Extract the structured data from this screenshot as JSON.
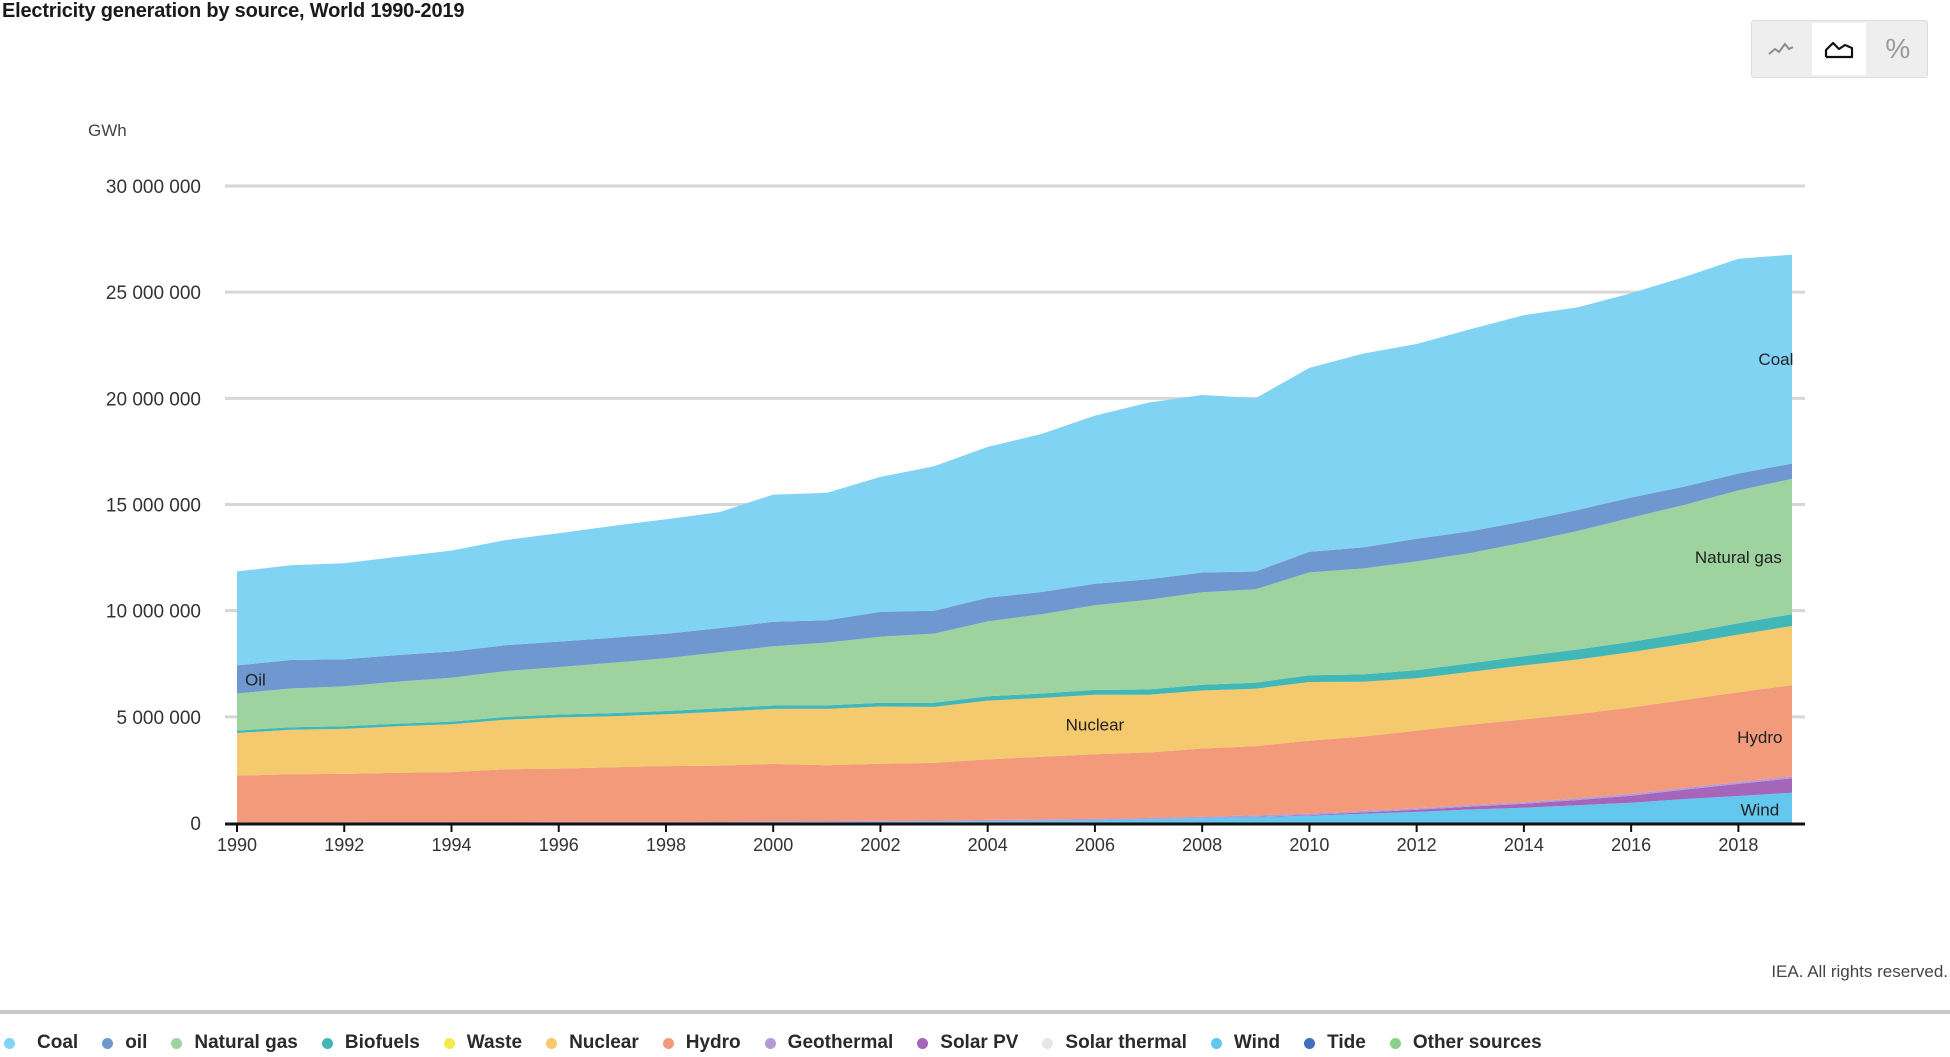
{
  "header": {
    "title": "Electricity generation by source, World 1990-2019"
  },
  "toolbar": {
    "buttons": [
      {
        "icon": "line-chart-icon",
        "active": false
      },
      {
        "icon": "area-chart-icon",
        "active": true
      },
      {
        "icon": "percent-icon",
        "label": "%",
        "active": false
      }
    ]
  },
  "footer": {
    "credit": "IEA. All rights reserved."
  },
  "legend": [
    {
      "label": "Coal",
      "color": "#81d3f3"
    },
    {
      "label": "oil",
      "color": "#6f98d1"
    },
    {
      "label": "Natural gas",
      "color": "#9ed3a0"
    },
    {
      "label": "Biofuels",
      "color": "#42b7b8"
    },
    {
      "label": "Waste",
      "color": "#f6e94f"
    },
    {
      "label": "Nuclear",
      "color": "#f5c96e"
    },
    {
      "label": "Hydro",
      "color": "#f29a7a"
    },
    {
      "label": "Geothermal",
      "color": "#b59ad8"
    },
    {
      "label": "Solar PV",
      "color": "#a565b8"
    },
    {
      "label": "Solar thermal",
      "color": "#e6e6e6"
    },
    {
      "label": "Wind",
      "color": "#64c7ee"
    },
    {
      "label": "Tide",
      "color": "#3f6fba"
    },
    {
      "label": "Other sources",
      "color": "#8ccf8a"
    }
  ],
  "chart_data": {
    "type": "area",
    "stacked": true,
    "title": "Electricity generation by source, World 1990-2019",
    "ylabel": "GWh",
    "xlabel": "",
    "ylim": [
      0,
      30000000
    ],
    "xlim": [
      1990,
      2019
    ],
    "grid": true,
    "y_ticks": [
      0,
      5000000,
      10000000,
      15000000,
      20000000,
      25000000,
      30000000
    ],
    "y_tick_labels": [
      "0",
      "5 000 000",
      "10 000 000",
      "15 000 000",
      "20 000 000",
      "25 000 000",
      "30 000 000"
    ],
    "x_ticks": [
      "1990",
      "1992",
      "1994",
      "1996",
      "1998",
      "2000",
      "2002",
      "2004",
      "2006",
      "2008",
      "2010",
      "2012",
      "2014",
      "2016",
      "2018"
    ],
    "x": [
      1990,
      1991,
      1992,
      1993,
      1994,
      1995,
      1996,
      1997,
      1998,
      1999,
      2000,
      2001,
      2002,
      2003,
      2004,
      2005,
      2006,
      2007,
      2008,
      2009,
      2010,
      2011,
      2012,
      2013,
      2014,
      2015,
      2016,
      2017,
      2018,
      2019
    ],
    "series": [
      {
        "name": "Wind",
        "color": "#64c7ee",
        "label": "Wind",
        "values": [
          4000,
          4500,
          5000,
          6000,
          7500,
          8000,
          9500,
          12000,
          16000,
          21000,
          31000,
          38000,
          52000,
          63000,
          85000,
          104000,
          133000,
          171000,
          221000,
          276000,
          342000,
          437000,
          523000,
          638000,
          714000,
          832000,
          958000,
          1131000,
          1273000,
          1427000
        ]
      },
      {
        "name": "Solar PV",
        "color": "#a565b8",
        "values": [
          0,
          0,
          0,
          0,
          0,
          0,
          0,
          0,
          0,
          1000,
          1000,
          1000,
          1000,
          2000,
          3000,
          4000,
          6000,
          8000,
          12000,
          20000,
          32000,
          61000,
          97000,
          135000,
          190000,
          250000,
          330000,
          440000,
          570000,
          680000
        ]
      },
      {
        "name": "Geothermal",
        "color": "#b59ad8",
        "values": [
          36000,
          37000,
          38000,
          39000,
          40000,
          41000,
          42000,
          44000,
          46000,
          49000,
          52000,
          53000,
          54000,
          55000,
          57000,
          58000,
          60000,
          62000,
          65000,
          67000,
          68000,
          70000,
          71000,
          73000,
          76000,
          79000,
          81000,
          86000,
          89000,
          92000
        ]
      },
      {
        "name": "Hydro",
        "color": "#f29a7a",
        "label": "Hydro",
        "values": [
          2190000,
          2250000,
          2270000,
          2320000,
          2350000,
          2480000,
          2510000,
          2570000,
          2620000,
          2630000,
          2700000,
          2630000,
          2680000,
          2710000,
          2850000,
          2950000,
          3040000,
          3080000,
          3210000,
          3260000,
          3440000,
          3500000,
          3660000,
          3790000,
          3900000,
          3970000,
          4070000,
          4140000,
          4230000,
          4290000
        ]
      },
      {
        "name": "Nuclear",
        "color": "#f5c96e",
        "label": "Nuclear",
        "values": [
          2010000,
          2100000,
          2120000,
          2190000,
          2250000,
          2330000,
          2410000,
          2400000,
          2440000,
          2540000,
          2590000,
          2650000,
          2700000,
          2640000,
          2770000,
          2770000,
          2800000,
          2720000,
          2730000,
          2700000,
          2760000,
          2580000,
          2470000,
          2480000,
          2540000,
          2570000,
          2610000,
          2640000,
          2710000,
          2790000
        ]
      },
      {
        "name": "Biofuels",
        "color": "#42b7b8",
        "values": [
          110000,
          115000,
          120000,
          125000,
          130000,
          135000,
          140000,
          150000,
          155000,
          160000,
          160000,
          165000,
          175000,
          190000,
          200000,
          215000,
          230000,
          250000,
          270000,
          290000,
          320000,
          350000,
          380000,
          410000,
          440000,
          470000,
          490000,
          510000,
          540000,
          560000
        ]
      },
      {
        "name": "Natural gas",
        "color": "#9ed3a0",
        "label": "Natural gas",
        "values": [
          1750000,
          1830000,
          1880000,
          1980000,
          2060000,
          2160000,
          2230000,
          2370000,
          2480000,
          2640000,
          2790000,
          2960000,
          3110000,
          3260000,
          3530000,
          3730000,
          3990000,
          4220000,
          4360000,
          4400000,
          4840000,
          4990000,
          5120000,
          5190000,
          5350000,
          5580000,
          5840000,
          6040000,
          6250000,
          6370000
        ]
      },
      {
        "name": "oil",
        "color": "#6f98d1",
        "label": "Oil",
        "values": [
          1320000,
          1340000,
          1280000,
          1250000,
          1240000,
          1220000,
          1200000,
          1180000,
          1160000,
          1140000,
          1150000,
          1050000,
          1170000,
          1080000,
          1110000,
          1050000,
          1010000,
          970000,
          930000,
          830000,
          970000,
          990000,
          1070000,
          1020000,
          1000000,
          990000,
          950000,
          860000,
          800000,
          720000
        ]
      },
      {
        "name": "Coal",
        "color": "#81d3f3",
        "label": "Coal",
        "values": [
          4430000,
          4460000,
          4520000,
          4630000,
          4750000,
          4950000,
          5100000,
          5260000,
          5390000,
          5460000,
          5990000,
          6000000,
          6360000,
          6800000,
          7110000,
          7440000,
          7920000,
          8320000,
          8360000,
          8170000,
          8660000,
          9130000,
          9170000,
          9520000,
          9710000,
          9540000,
          9620000,
          9870000,
          10110000,
          9840000
        ]
      }
    ]
  }
}
